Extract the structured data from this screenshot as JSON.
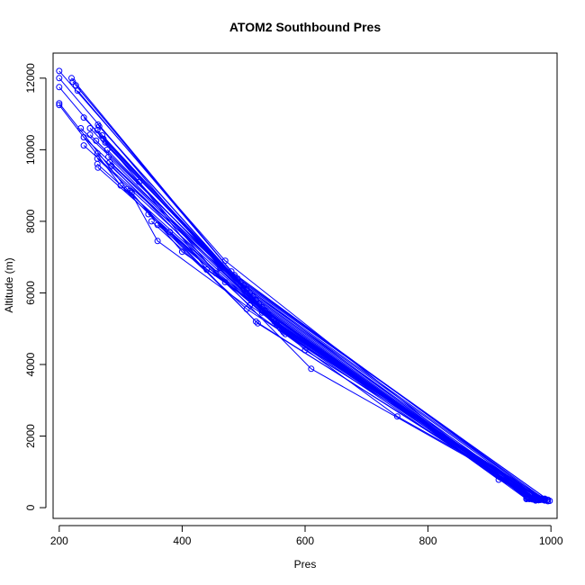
{
  "chart_data": {
    "type": "line",
    "title": "ATOM2 Southbound Pres",
    "xlabel": "Pres",
    "ylabel": "Altitude (m)",
    "xlim": [
      190,
      1010
    ],
    "ylim": [
      -300,
      12700
    ],
    "xticks": [
      200,
      400,
      600,
      800,
      1000
    ],
    "yticks": [
      0,
      2000,
      4000,
      6000,
      8000,
      10000,
      12000
    ],
    "grid": false,
    "series_color": "#0000ff",
    "series": [
      {
        "values": [
          [
            200,
            12200
          ],
          [
            470,
            6900
          ],
          [
            960,
            250
          ]
        ]
      },
      {
        "values": [
          [
            200,
            12000
          ],
          [
            462,
            6700
          ],
          [
            965,
            240
          ]
        ]
      },
      {
        "values": [
          [
            200,
            11750
          ],
          [
            455,
            6550
          ],
          [
            970,
            230
          ]
        ]
      },
      {
        "values": [
          [
            200,
            11300
          ],
          [
            310,
            8900
          ],
          [
            520,
            5200
          ],
          [
            975,
            220
          ]
        ]
      },
      {
        "values": [
          [
            200,
            11250
          ],
          [
            300,
            9000
          ],
          [
            523,
            5150
          ],
          [
            980,
            210
          ]
        ]
      },
      {
        "values": [
          [
            220,
            12000
          ],
          [
            480,
            6600
          ],
          [
            985,
            250
          ]
        ]
      },
      {
        "values": [
          [
            222,
            11900
          ],
          [
            485,
            6500
          ],
          [
            990,
            230
          ]
        ]
      },
      {
        "values": [
          [
            227,
            11800
          ],
          [
            490,
            6400
          ],
          [
            995,
            220
          ]
        ]
      },
      {
        "values": [
          [
            230,
            11650
          ],
          [
            495,
            6300
          ],
          [
            998,
            190
          ]
        ]
      },
      {
        "values": [
          [
            240,
            10900
          ],
          [
            500,
            6200
          ],
          [
            990,
            200
          ]
        ]
      },
      {
        "values": [
          [
            235,
            10600
          ],
          [
            505,
            6100
          ],
          [
            985,
            220
          ]
        ]
      },
      {
        "values": [
          [
            240,
            10350
          ],
          [
            510,
            6000
          ],
          [
            980,
            210
          ]
        ]
      },
      {
        "values": [
          [
            240,
            10120
          ],
          [
            515,
            5900
          ],
          [
            975,
            230
          ]
        ]
      },
      {
        "values": [
          [
            250,
            10600
          ],
          [
            520,
            5800
          ],
          [
            970,
            240
          ]
        ]
      },
      {
        "values": [
          [
            250,
            10420
          ],
          [
            525,
            5700
          ],
          [
            965,
            250
          ]
        ]
      },
      {
        "values": [
          [
            260,
            10250
          ],
          [
            530,
            5600
          ],
          [
            960,
            240
          ]
        ]
      },
      {
        "values": [
          [
            262,
            10550
          ],
          [
            535,
            5500
          ],
          [
            962,
            260
          ]
        ]
      },
      {
        "values": [
          [
            263,
            10700
          ],
          [
            540,
            5400
          ],
          [
            968,
            255
          ]
        ]
      },
      {
        "values": [
          [
            265,
            10650
          ],
          [
            545,
            5300
          ],
          [
            972,
            245
          ]
        ]
      },
      {
        "values": [
          [
            262,
            9900
          ],
          [
            550,
            5200
          ],
          [
            978,
            235
          ]
        ]
      },
      {
        "values": [
          [
            262,
            9750
          ],
          [
            555,
            5100
          ],
          [
            983,
            225
          ]
        ]
      },
      {
        "values": [
          [
            262,
            9600
          ],
          [
            560,
            5000
          ],
          [
            988,
            215
          ]
        ]
      },
      {
        "values": [
          [
            263,
            9500
          ],
          [
            565,
            4900
          ],
          [
            993,
            205
          ]
        ]
      },
      {
        "values": [
          [
            270,
            10400
          ],
          [
            548,
            5250
          ],
          [
            980,
            260
          ]
        ]
      },
      {
        "values": [
          [
            272,
            10300
          ],
          [
            553,
            5150
          ],
          [
            975,
            270
          ]
        ]
      },
      {
        "values": [
          [
            275,
            10200
          ],
          [
            558,
            5050
          ],
          [
            970,
            280
          ]
        ]
      },
      {
        "values": [
          [
            278,
            10000
          ],
          [
            563,
            4950
          ],
          [
            965,
            290
          ]
        ]
      },
      {
        "values": [
          [
            280,
            9800
          ],
          [
            568,
            4850
          ],
          [
            960,
            300
          ]
        ]
      },
      {
        "values": [
          [
            282,
            9650
          ],
          [
            600,
            4400
          ],
          [
            990,
            250
          ]
        ]
      },
      {
        "values": [
          [
            285,
            9550
          ],
          [
            610,
            3880
          ],
          [
            985,
            240
          ]
        ]
      },
      {
        "values": [
          [
            315,
            8850
          ],
          [
            360,
            7450
          ],
          [
            750,
            2550
          ],
          [
            995,
            180
          ]
        ]
      },
      {
        "values": [
          [
            318,
            8800
          ],
          [
            400,
            7150
          ],
          [
            975,
            200
          ]
        ]
      },
      {
        "values": [
          [
            330,
            9100
          ],
          [
            440,
            6650
          ],
          [
            915,
            780
          ],
          [
            982,
            215
          ]
        ]
      },
      {
        "values": [
          [
            345,
            8200
          ],
          [
            470,
            6300
          ],
          [
            965,
            260
          ]
        ]
      },
      {
        "values": [
          [
            380,
            7700
          ],
          [
            510,
            5650
          ],
          [
            970,
            270
          ]
        ]
      },
      {
        "values": [
          [
            350,
            8000
          ],
          [
            505,
            5550
          ],
          [
            985,
            230
          ]
        ]
      },
      {
        "values": [
          [
            360,
            7900
          ],
          [
            530,
            5450
          ],
          [
            978,
            240
          ]
        ]
      }
    ]
  }
}
